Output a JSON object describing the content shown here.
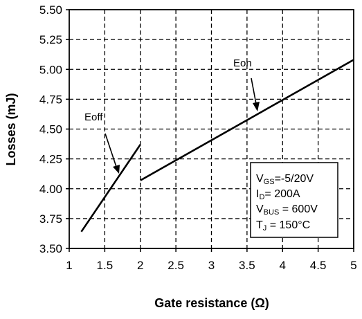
{
  "chart_data": {
    "type": "line",
    "title": "",
    "xlabel": "Gate resistance (Ω)",
    "ylabel": "Losses (mJ)",
    "xlim": [
      1,
      5
    ],
    "ylim": [
      3.5,
      5.5
    ],
    "x_ticks": [
      "1",
      "1.5",
      "2",
      "2.5",
      "3",
      "3.5",
      "4",
      "4.5",
      "5"
    ],
    "y_ticks": [
      "3.50",
      "3.75",
      "4.00",
      "4.25",
      "4.50",
      "4.75",
      "5.00",
      "5.25",
      "5.50"
    ],
    "grid": true,
    "series": [
      {
        "name": "Eoff",
        "color": "#000000",
        "points": [
          [
            1.17,
            3.64
          ],
          [
            2.0,
            4.37
          ]
        ]
      },
      {
        "name": "Eon",
        "color": "#000000",
        "points": [
          [
            2.0,
            4.07
          ],
          [
            5.0,
            5.08
          ]
        ]
      }
    ],
    "conditions": {
      "vgs": {
        "main": "V",
        "sub": "GS",
        "rest": "=-5/20V"
      },
      "id": {
        "main": "I",
        "sub": "D",
        "rest": "= 200A"
      },
      "vbus": {
        "main": "V",
        "sub": "BUS",
        "rest": " = 600V"
      },
      "tj": {
        "main": "T",
        "sub": "J",
        "rest": " = 150°C"
      }
    }
  }
}
